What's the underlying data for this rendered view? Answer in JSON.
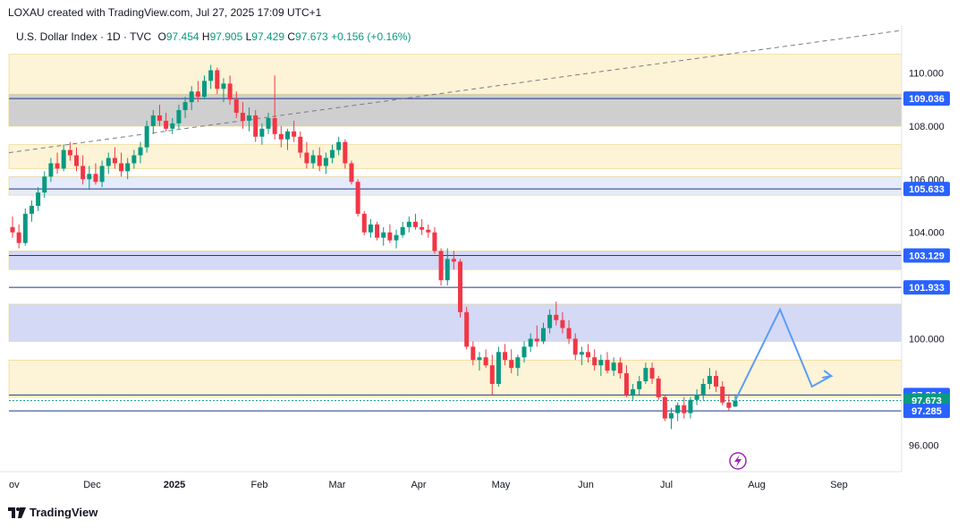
{
  "header": {
    "attribution": "LOXAU created with TradingView.com, Jul 27, 2025 17:09 UTC+1"
  },
  "legend": {
    "symbol": "U.S. Dollar Index · 1D · TVC",
    "o_label": "O",
    "o": "97.454",
    "h_label": "H",
    "h": "97.905",
    "l_label": "L",
    "l": "97.429",
    "c_label": "C",
    "c": "97.673",
    "change": "+0.156 (+0.16%)"
  },
  "footer": {
    "brand": "TradingView"
  },
  "colors": {
    "up": "#089981",
    "down": "#f23645",
    "blue_label": "#2962ff",
    "green_label": "#089981",
    "zone_yellow": "#fdf3d6",
    "zone_blue": "#d4d9f6",
    "zone_gray": "#cccccc"
  },
  "chart_data": {
    "type": "candlestick",
    "y_axis": {
      "min": 95.0,
      "max": 111.8,
      "ticks": [
        "110.000",
        "108.000",
        "106.000",
        "104.000",
        "100.000",
        "96.000"
      ]
    },
    "x_axis": {
      "ticks": [
        "ov",
        "Dec",
        "2025",
        "Feb",
        "Mar",
        "Apr",
        "May",
        "Jun",
        "Jul",
        "Aug",
        "Sep"
      ]
    },
    "price_labels": [
      {
        "text": "109.036",
        "value": 109.036,
        "color": "blue"
      },
      {
        "text": "105.633",
        "value": 105.633,
        "color": "blue"
      },
      {
        "text": "103.129",
        "value": 103.129,
        "color": "blue"
      },
      {
        "text": "101.933",
        "value": 101.933,
        "color": "blue"
      },
      {
        "text": "97.884",
        "value": 97.884,
        "color": "blue"
      },
      {
        "text": "97.673",
        "value": 97.673,
        "color": "green"
      },
      {
        "text": "97.285",
        "value": 97.285,
        "color": "blue"
      }
    ],
    "zones": [
      {
        "kind": "yellow",
        "from": 108.0,
        "to": 110.7
      },
      {
        "kind": "gray",
        "from": 108.0,
        "to": 109.2
      },
      {
        "kind": "yellow",
        "from": 106.4,
        "to": 107.3
      },
      {
        "kind": "blue_light",
        "from": 105.4,
        "to": 106.1
      },
      {
        "kind": "blue",
        "from": 102.6,
        "to": 103.3
      },
      {
        "kind": "blue",
        "from": 99.9,
        "to": 101.3
      },
      {
        "kind": "yellow",
        "from": 97.8,
        "to": 99.2
      }
    ],
    "candles": [
      [
        104.2,
        104.6,
        103.8,
        104.0
      ],
      [
        104.0,
        104.3,
        103.4,
        103.6
      ],
      [
        103.6,
        104.9,
        103.5,
        104.7
      ],
      [
        104.7,
        105.2,
        104.4,
        105.0
      ],
      [
        105.0,
        105.7,
        104.8,
        105.5
      ],
      [
        105.5,
        106.3,
        105.3,
        106.1
      ],
      [
        106.1,
        106.8,
        105.9,
        106.6
      ],
      [
        106.6,
        107.0,
        106.2,
        106.4
      ],
      [
        106.4,
        107.3,
        106.3,
        107.1
      ],
      [
        107.1,
        107.4,
        106.7,
        106.9
      ],
      [
        106.9,
        107.2,
        106.3,
        106.5
      ],
      [
        106.5,
        106.9,
        105.8,
        106.0
      ],
      [
        106.0,
        106.5,
        105.6,
        106.2
      ],
      [
        106.2,
        106.6,
        105.8,
        105.9
      ],
      [
        105.9,
        106.7,
        105.7,
        106.5
      ],
      [
        106.5,
        107.0,
        106.2,
        106.8
      ],
      [
        106.8,
        107.2,
        106.4,
        106.6
      ],
      [
        106.6,
        107.0,
        106.1,
        106.3
      ],
      [
        106.3,
        106.8,
        106.0,
        106.6
      ],
      [
        106.6,
        107.1,
        106.4,
        106.9
      ],
      [
        106.9,
        107.4,
        106.6,
        107.2
      ],
      [
        107.2,
        108.2,
        107.0,
        108.0
      ],
      [
        108.0,
        108.6,
        107.7,
        108.4
      ],
      [
        108.4,
        108.8,
        108.0,
        108.2
      ],
      [
        108.2,
        108.5,
        107.8,
        107.9
      ],
      [
        107.9,
        108.3,
        107.7,
        108.1
      ],
      [
        108.1,
        108.8,
        107.9,
        108.6
      ],
      [
        108.6,
        109.1,
        108.3,
        108.9
      ],
      [
        108.9,
        109.5,
        108.6,
        109.3
      ],
      [
        109.3,
        109.7,
        108.9,
        109.1
      ],
      [
        109.1,
        109.9,
        109.0,
        109.7
      ],
      [
        109.7,
        110.3,
        109.4,
        110.1
      ],
      [
        110.1,
        110.2,
        109.2,
        109.4
      ],
      [
        109.4,
        109.8,
        108.9,
        109.6
      ],
      [
        109.6,
        109.9,
        108.8,
        109.0
      ],
      [
        109.0,
        109.3,
        108.3,
        108.5
      ],
      [
        108.5,
        108.9,
        107.9,
        108.2
      ],
      [
        108.2,
        108.7,
        107.8,
        108.4
      ],
      [
        108.4,
        108.6,
        107.4,
        107.6
      ],
      [
        107.6,
        108.1,
        107.3,
        107.9
      ],
      [
        107.9,
        108.5,
        107.7,
        108.3
      ],
      [
        108.3,
        109.9,
        107.5,
        107.7
      ],
      [
        107.7,
        108.0,
        107.2,
        107.5
      ],
      [
        107.5,
        107.9,
        107.1,
        107.8
      ],
      [
        107.8,
        108.2,
        107.4,
        107.6
      ],
      [
        107.6,
        107.8,
        106.8,
        107.0
      ],
      [
        107.0,
        107.4,
        106.4,
        106.6
      ],
      [
        106.6,
        107.1,
        106.4,
        106.9
      ],
      [
        106.9,
        107.2,
        106.3,
        106.5
      ],
      [
        106.5,
        107.0,
        106.2,
        106.8
      ],
      [
        106.8,
        107.3,
        106.6,
        107.1
      ],
      [
        107.1,
        107.6,
        106.9,
        107.4
      ],
      [
        107.4,
        107.5,
        106.4,
        106.6
      ],
      [
        106.6,
        106.7,
        105.8,
        105.9
      ],
      [
        105.9,
        106.0,
        104.6,
        104.7
      ],
      [
        104.7,
        104.8,
        103.9,
        104.0
      ],
      [
        104.0,
        104.5,
        103.8,
        104.3
      ],
      [
        104.3,
        104.4,
        103.7,
        103.8
      ],
      [
        103.8,
        104.2,
        103.5,
        104.0
      ],
      [
        104.0,
        104.3,
        103.6,
        103.7
      ],
      [
        103.7,
        104.1,
        103.4,
        103.9
      ],
      [
        103.9,
        104.4,
        103.8,
        104.2
      ],
      [
        104.2,
        104.6,
        104.0,
        104.4
      ],
      [
        104.4,
        104.7,
        104.1,
        104.2
      ],
      [
        104.2,
        104.5,
        103.9,
        104.1
      ],
      [
        104.1,
        104.3,
        103.8,
        104.0
      ],
      [
        104.0,
        104.2,
        103.2,
        103.3
      ],
      [
        103.3,
        103.4,
        102.0,
        102.2
      ],
      [
        102.2,
        103.4,
        102.0,
        103.0
      ],
      [
        103.0,
        103.3,
        102.6,
        102.9
      ],
      [
        102.9,
        103.0,
        100.8,
        101.0
      ],
      [
        101.0,
        101.2,
        99.6,
        99.7
      ],
      [
        99.7,
        99.9,
        99.0,
        99.2
      ],
      [
        99.2,
        99.5,
        98.8,
        99.3
      ],
      [
        99.3,
        99.6,
        98.9,
        99.0
      ],
      [
        99.0,
        99.4,
        97.9,
        98.3
      ],
      [
        98.3,
        99.7,
        98.2,
        99.5
      ],
      [
        99.5,
        99.8,
        99.0,
        99.2
      ],
      [
        99.2,
        99.6,
        98.7,
        98.9
      ],
      [
        98.9,
        99.4,
        98.6,
        99.3
      ],
      [
        99.3,
        99.9,
        99.1,
        99.7
      ],
      [
        99.7,
        100.2,
        99.5,
        100.0
      ],
      [
        100.0,
        100.5,
        99.7,
        99.9
      ],
      [
        99.9,
        100.6,
        99.8,
        100.4
      ],
      [
        100.4,
        101.1,
        100.2,
        100.9
      ],
      [
        100.9,
        101.4,
        100.5,
        100.7
      ],
      [
        100.7,
        101.0,
        100.2,
        100.4
      ],
      [
        100.4,
        100.7,
        99.8,
        100.0
      ],
      [
        100.0,
        100.2,
        99.2,
        99.4
      ],
      [
        99.4,
        99.7,
        99.0,
        99.5
      ],
      [
        99.5,
        99.8,
        99.1,
        99.3
      ],
      [
        99.3,
        99.6,
        98.8,
        99.0
      ],
      [
        99.0,
        99.4,
        98.6,
        99.2
      ],
      [
        99.2,
        99.5,
        98.7,
        98.8
      ],
      [
        98.8,
        99.3,
        98.6,
        99.1
      ],
      [
        99.1,
        99.3,
        98.5,
        98.7
      ],
      [
        98.7,
        99.0,
        97.8,
        97.9
      ],
      [
        97.9,
        98.3,
        97.7,
        98.1
      ],
      [
        98.1,
        98.6,
        97.9,
        98.4
      ],
      [
        98.4,
        99.1,
        98.3,
        98.9
      ],
      [
        98.9,
        99.1,
        98.3,
        98.5
      ],
      [
        98.5,
        98.6,
        97.7,
        97.8
      ],
      [
        97.8,
        97.9,
        96.9,
        97.0
      ],
      [
        97.0,
        97.4,
        96.6,
        97.2
      ],
      [
        97.2,
        97.6,
        96.9,
        97.5
      ],
      [
        97.5,
        97.8,
        97.0,
        97.2
      ],
      [
        97.2,
        97.8,
        97.0,
        97.7
      ],
      [
        97.7,
        98.1,
        97.5,
        97.9
      ],
      [
        97.9,
        98.5,
        97.7,
        98.3
      ],
      [
        98.3,
        98.9,
        98.1,
        98.6
      ],
      [
        98.6,
        98.8,
        98.0,
        98.2
      ],
      [
        98.2,
        98.4,
        97.5,
        97.6
      ],
      [
        97.6,
        97.9,
        97.3,
        97.4
      ],
      [
        97.45,
        97.905,
        97.429,
        97.673
      ]
    ],
    "projection": [
      [
        97.673,
        0
      ],
      [
        101.1,
        7
      ],
      [
        98.2,
        12
      ],
      [
        98.6,
        15
      ]
    ]
  }
}
